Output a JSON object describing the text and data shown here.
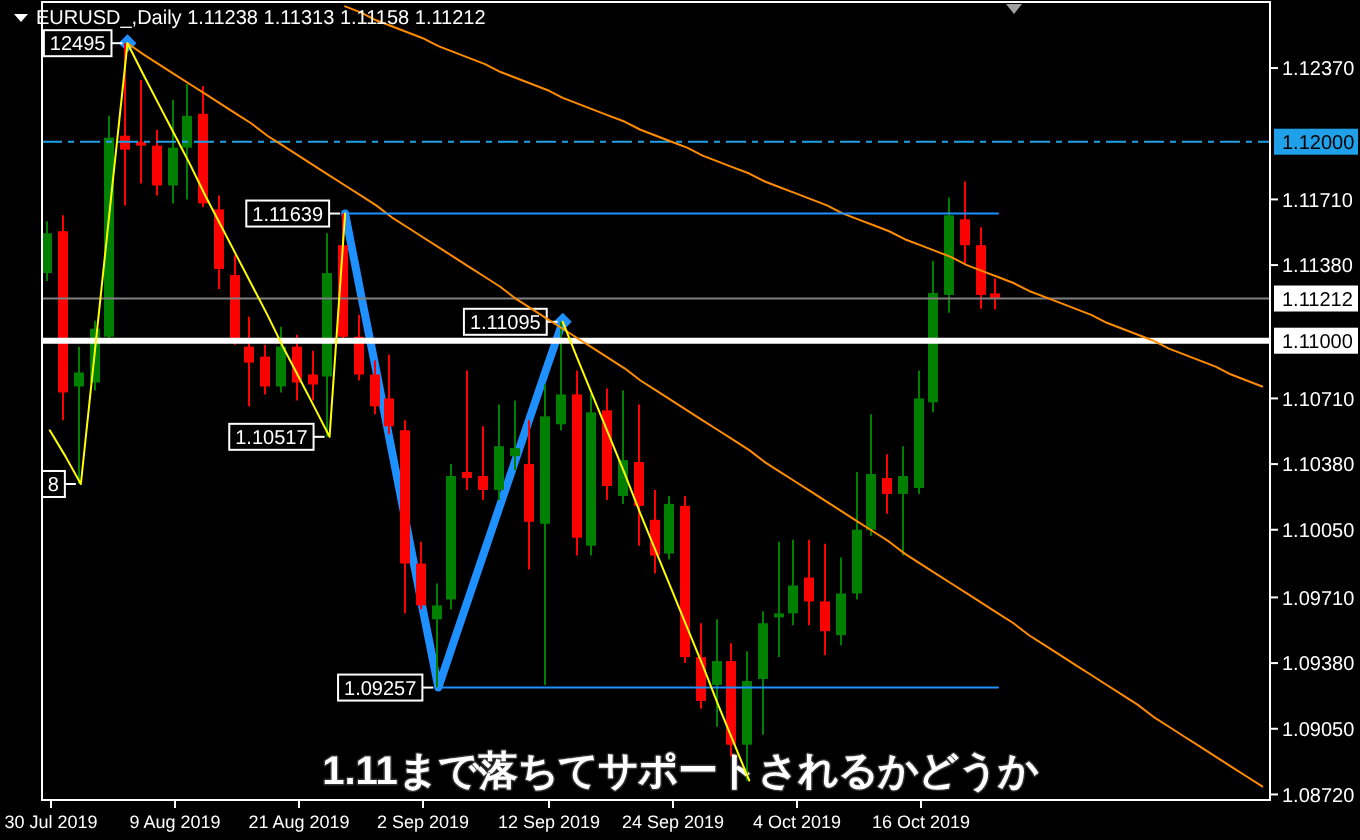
{
  "chart_data": {
    "type": "candlestick",
    "title": "EURUSD_,Daily 1.11238 1.11313 1.11158 1.11212",
    "categories": [
      "30 Jul 2019",
      null,
      null,
      null,
      null,
      null,
      null,
      null,
      "9 Aug 2019",
      null,
      null,
      null,
      null,
      null,
      null,
      null,
      "21 Aug 2019",
      null,
      null,
      null,
      null,
      null,
      null,
      null,
      "2 Sep 2019",
      null,
      null,
      null,
      null,
      null,
      null,
      null,
      "12 Sep 2019",
      null,
      null,
      null,
      null,
      null,
      null,
      null,
      "24 Sep 2019",
      null,
      null,
      null,
      null,
      null,
      null,
      null,
      "4 Oct 2019",
      null,
      null,
      null,
      null,
      null,
      null,
      null,
      "16 Oct 2019",
      null,
      null,
      null,
      null,
      null,
      null,
      null,
      null,
      null,
      null,
      null,
      null,
      null,
      null,
      null,
      null,
      null,
      null,
      null,
      null,
      null,
      null
    ],
    "ohlc": [
      [
        1.1134,
        1.116,
        1.113,
        1.1154
      ],
      [
        1.1155,
        1.1163,
        1.106,
        1.1074
      ],
      [
        1.1077,
        1.1097,
        1.1028,
        1.1084
      ],
      [
        1.1079,
        1.111,
        1.1075,
        1.1106
      ],
      [
        1.1102,
        1.1213,
        1.11,
        1.1202
      ],
      [
        1.1203,
        1.12495,
        1.1168,
        1.1196
      ],
      [
        1.12,
        1.1231,
        1.1179,
        1.1198
      ],
      [
        1.1198,
        1.1206,
        1.1173,
        1.1178
      ],
      [
        1.1178,
        1.1221,
        1.1169,
        1.1197
      ],
      [
        1.1197,
        1.1229,
        1.1171,
        1.1213
      ],
      [
        1.1214,
        1.1228,
        1.1167,
        1.1169
      ],
      [
        1.1166,
        1.1173,
        1.1126,
        1.1136
      ],
      [
        1.1133,
        1.1143,
        1.1098,
        1.1101
      ],
      [
        1.1097,
        1.1112,
        1.1067,
        1.1089
      ],
      [
        1.1092,
        1.1098,
        1.1073,
        1.1077
      ],
      [
        1.1077,
        1.1107,
        1.1074,
        1.1097
      ],
      [
        1.1097,
        1.1103,
        1.107,
        1.1079
      ],
      [
        1.1083,
        1.1095,
        1.107,
        1.1078
      ],
      [
        1.1082,
        1.1154,
        1.10517,
        1.1134
      ],
      [
        1.1148,
        1.11639,
        1.11,
        1.1102
      ],
      [
        1.1102,
        1.1113,
        1.108,
        1.1083
      ],
      [
        1.1083,
        1.109,
        1.1063,
        1.1067
      ],
      [
        1.1071,
        1.1093,
        1.1053,
        1.1057
      ],
      [
        1.1055,
        1.106,
        1.0963,
        1.0988
      ],
      [
        1.0988,
        1.0999,
        1.0965,
        1.0967
      ],
      [
        1.096,
        1.0978,
        1.09257,
        1.0967
      ],
      [
        1.097,
        1.1038,
        1.0965,
        1.1032
      ],
      [
        1.1034,
        1.1085,
        1.1025,
        1.1031
      ],
      [
        1.1032,
        1.1057,
        1.102,
        1.1025
      ],
      [
        1.1025,
        1.1068,
        1.102,
        1.1047
      ],
      [
        1.1042,
        1.107,
        1.1035,
        1.1046
      ],
      [
        1.1038,
        1.106,
        1.0985,
        1.1009
      ],
      [
        1.1008,
        1.1078,
        1.0927,
        1.1062
      ],
      [
        1.1058,
        1.11095,
        1.1055,
        1.1073
      ],
      [
        1.1073,
        1.1085,
        1.0992,
        1.1001
      ],
      [
        1.0997,
        1.1073,
        1.0992,
        1.1064
      ],
      [
        1.1065,
        1.1076,
        1.102,
        1.1027
      ],
      [
        1.1022,
        1.1075,
        1.1018,
        1.104
      ],
      [
        1.1039,
        1.1068,
        1.0997,
        1.1017
      ],
      [
        1.101,
        1.1025,
        1.0983,
        1.0992
      ],
      [
        1.0993,
        1.1022,
        1.099,
        1.1018
      ],
      [
        1.1017,
        1.1022,
        1.0938,
        1.0941
      ],
      [
        1.0941,
        1.0958,
        1.0915,
        1.0919
      ],
      [
        1.0927,
        1.096,
        1.0906,
        1.0939
      ],
      [
        1.0939,
        1.0948,
        1.0891,
        1.0897
      ],
      [
        1.0897,
        1.0944,
        1.0879,
        1.0929
      ],
      [
        1.093,
        1.0964,
        1.0902,
        1.0958
      ],
      [
        1.0961,
        1.0999,
        1.0941,
        1.0963
      ],
      [
        1.0963,
        1.1,
        1.0957,
        1.0977
      ],
      [
        1.0981,
        1.1,
        1.0957,
        1.0969
      ],
      [
        1.0969,
        1.0998,
        1.0942,
        1.0954
      ],
      [
        1.0952,
        1.0991,
        1.0947,
        1.0973
      ],
      [
        1.0973,
        1.1034,
        1.097,
        1.1005
      ],
      [
        1.1005,
        1.1063,
        1.1002,
        1.1033
      ],
      [
        1.1031,
        1.1043,
        1.1013,
        1.1023
      ],
      [
        1.1023,
        1.1047,
        1.0992,
        1.1032
      ],
      [
        1.1026,
        1.1085,
        1.1023,
        1.1071
      ],
      [
        1.1069,
        1.114,
        1.1064,
        1.1124
      ],
      [
        1.1123,
        1.1172,
        1.1114,
        1.1163
      ],
      [
        1.1161,
        1.118,
        1.1139,
        1.1148
      ],
      [
        1.1148,
        1.1157,
        1.1116,
        1.1123
      ],
      [
        1.11238,
        1.11313,
        1.11158,
        1.11212
      ],
      null,
      null,
      null,
      null,
      null,
      null,
      null,
      null,
      null,
      null,
      null,
      null,
      null,
      null,
      null,
      null,
      null
    ],
    "colors": [
      "#008000",
      "#ff0000",
      "#008000",
      "#008000",
      "#008000",
      "#ff0000",
      "#ff0000",
      "#ff0000",
      "#008000",
      "#008000",
      "#ff0000",
      "#ff0000",
      "#ff0000",
      "#ff0000",
      "#ff0000",
      "#008000",
      "#ff0000",
      "#ff0000",
      "#008000",
      "#ff0000",
      "#ff0000",
      "#ff0000",
      "#ff0000",
      "#ff0000",
      "#ff0000",
      "#008000",
      "#008000",
      "#ff0000",
      "#ff0000",
      "#008000",
      "#008000",
      "#ff0000",
      "#008000",
      "#008000",
      "#ff0000",
      "#008000",
      "#ff0000",
      "#008000",
      "#ff0000",
      "#ff0000",
      "#008000",
      "#ff0000",
      "#ff0000",
      "#008000",
      "#ff0000",
      "#008000",
      "#008000",
      "#008000",
      "#008000",
      "#ff0000",
      "#ff0000",
      "#008000",
      "#008000",
      "#008000",
      "#ff0000",
      "#008000",
      "#008000",
      "#008000",
      "#008000",
      "#ff0000",
      "#ff0000",
      "#ff0000",
      null,
      null,
      null,
      null,
      null,
      null,
      null,
      null,
      null,
      null,
      null,
      null,
      null,
      null,
      null,
      null,
      null
    ],
    "series": [
      {
        "type": "line",
        "color": "#ff8c00",
        "values": [
          null,
          null,
          null,
          null,
          null,
          null,
          null,
          null,
          null,
          null,
          null,
          null,
          null,
          null,
          null,
          null,
          null,
          null,
          null,
          1.1268,
          1.1265,
          1.1261,
          1.1258,
          1.1255,
          1.1252,
          1.1248,
          1.1245,
          1.1242,
          1.1239,
          1.1235,
          1.1232,
          1.1229,
          1.1226,
          1.1222,
          1.1219,
          1.1216,
          1.1213,
          1.121,
          1.1206,
          1.1203,
          1.12,
          1.1197,
          1.1193,
          1.119,
          1.1187,
          1.1184,
          1.118,
          1.1177,
          1.1174,
          1.1171,
          1.1168,
          1.1164,
          1.1161,
          1.1158,
          1.1155,
          1.1151,
          1.1148,
          1.1145,
          1.1142,
          1.1138,
          1.1135,
          1.1132,
          1.1129,
          1.1125,
          1.1122,
          1.1119,
          1.1116,
          1.1113,
          1.1109,
          1.1106,
          1.1103,
          1.11,
          1.1096,
          1.1093,
          1.109,
          1.1087,
          1.1083,
          1.108,
          1.1077
        ]
      },
      {
        "type": "line",
        "color": "#ff8c00",
        "values": [
          null,
          null,
          null,
          null,
          null,
          1.12495,
          1.1244,
          1.1239,
          1.1234,
          1.1229,
          1.1224,
          1.1219,
          1.1214,
          1.1209,
          1.1203,
          1.1198,
          1.1193,
          1.1188,
          1.1183,
          1.1178,
          1.1173,
          1.1168,
          1.1162,
          1.1157,
          1.1152,
          1.1147,
          1.1142,
          1.1137,
          1.1132,
          1.1127,
          1.1121,
          1.1116,
          1.1111,
          1.1106,
          1.1101,
          1.1096,
          1.1091,
          1.1086,
          1.108,
          1.1075,
          1.107,
          1.1065,
          1.106,
          1.1055,
          1.105,
          1.1045,
          1.1039,
          1.1034,
          1.1029,
          1.1024,
          1.1019,
          1.1014,
          1.1009,
          1.1004,
          1.0999,
          1.0993,
          1.0988,
          1.0983,
          1.0978,
          1.0973,
          1.0968,
          1.0963,
          1.0958,
          1.0952,
          1.0947,
          1.0942,
          1.0937,
          1.0932,
          1.0927,
          1.0922,
          1.0917,
          1.0911,
          1.0906,
          1.0901,
          1.0896,
          1.0891,
          1.0886,
          1.0881,
          1.0876
        ]
      },
      {
        "type": "line",
        "color": "#1e90ff",
        "values": [
          null,
          null,
          null,
          null,
          null,
          null,
          null,
          null,
          null,
          null,
          null,
          null,
          null,
          null,
          null,
          null,
          null,
          null,
          null,
          1.11639,
          1.11639,
          1.11639,
          1.11639,
          1.11639,
          1.11639,
          1.11639,
          1.11639,
          1.11639,
          1.11639,
          1.11639,
          1.11639,
          1.11639,
          1.11639,
          1.11639,
          1.11639,
          1.11639,
          1.11639,
          1.11639,
          1.11639,
          1.11639,
          1.11639,
          1.11639,
          1.11639,
          1.11639,
          1.11639,
          1.11639,
          1.11639,
          1.11639,
          1.11639,
          1.11639,
          1.11639,
          1.11639,
          1.11639,
          1.11639,
          1.11639,
          1.11639,
          1.11639,
          1.11639,
          1.11639,
          1.11639,
          1.11639,
          1.11639,
          null,
          null,
          null,
          null,
          null,
          null,
          null,
          null,
          null,
          null,
          null,
          null,
          null,
          null,
          null,
          null,
          null
        ]
      },
      {
        "type": "line",
        "color": "#1e90ff",
        "values": [
          null,
          null,
          null,
          null,
          null,
          null,
          null,
          null,
          null,
          null,
          null,
          null,
          null,
          null,
          null,
          null,
          null,
          null,
          null,
          null,
          null,
          null,
          null,
          null,
          null,
          1.09257,
          1.09257,
          1.09257,
          1.09257,
          1.09257,
          1.09257,
          1.09257,
          1.09257,
          1.09257,
          1.09257,
          1.09257,
          1.09257,
          1.09257,
          1.09257,
          1.09257,
          1.09257,
          1.09257,
          1.09257,
          1.09257,
          1.09257,
          1.09257,
          1.09257,
          1.09257,
          1.09257,
          1.09257,
          1.09257,
          1.09257,
          1.09257,
          1.09257,
          1.09257,
          1.09257,
          1.09257,
          1.09257,
          1.09257,
          1.09257,
          1.09257,
          1.09257,
          null,
          null,
          null,
          null,
          null,
          null,
          null,
          null,
          null,
          null,
          null,
          null,
          null,
          null,
          null,
          null,
          null
        ]
      },
      {
        "type": "line",
        "color": "#ffff00",
        "values": [
          1.1055,
          1.1042,
          1.1028,
          1.1102,
          1.1176,
          1.12495,
          1.1234,
          1.1219,
          1.1204,
          1.1189,
          1.1173,
          1.1158,
          1.1143,
          1.1128,
          1.1113,
          1.1097,
          1.1082,
          1.1067,
          1.10517,
          1.11639,
          null,
          null,
          null,
          null,
          null,
          null,
          null,
          null,
          null,
          null,
          null,
          null,
          null,
          1.11095,
          1.109,
          1.1071,
          1.1052,
          1.1033,
          1.1013,
          1.0994,
          1.0975,
          1.0956,
          1.0937,
          1.0917,
          1.0898,
          1.0879,
          null,
          null,
          null,
          null,
          null,
          null,
          null,
          null,
          null,
          null,
          null,
          null,
          null,
          null,
          null,
          null,
          null,
          null,
          null,
          null,
          null,
          null,
          null,
          null,
          null,
          null,
          null,
          null,
          null,
          null,
          null,
          null,
          null
        ]
      },
      {
        "type": "line",
        "color": "#1e90ff",
        "values": [
          null,
          null,
          null,
          null,
          null,
          null,
          null,
          null,
          null,
          null,
          null,
          null,
          null,
          null,
          null,
          null,
          null,
          null,
          null,
          1.11639,
          1.1124,
          1.1085,
          1.1045,
          1.1005,
          1.0965,
          1.09257,
          1.0949,
          1.0972,
          1.0995,
          1.1018,
          1.1041,
          1.1064,
          1.1087,
          1.11095,
          null,
          null,
          null,
          null,
          null,
          null,
          null,
          null,
          null,
          null,
          null,
          null,
          null,
          null,
          null,
          null,
          null,
          null,
          null,
          null,
          null,
          null,
          null,
          null,
          null,
          null,
          null,
          null,
          null,
          null,
          null,
          null,
          null,
          null,
          null,
          null,
          null,
          null,
          null,
          null,
          null,
          null,
          null,
          null,
          null
        ]
      },
      {
        "type": "scatter",
        "color": "#1e90ff",
        "marker": "diamond",
        "values": [
          null,
          null,
          null,
          null,
          null,
          1.12495,
          null,
          null,
          null,
          null,
          null,
          null,
          null,
          null,
          null,
          null,
          null,
          null,
          null,
          null,
          null,
          null,
          null,
          null,
          null,
          null,
          null,
          null,
          null,
          null,
          null,
          null,
          null,
          1.11095,
          null,
          null,
          null,
          null,
          null,
          null,
          null,
          null,
          null,
          null,
          null,
          null,
          null,
          null,
          null,
          null,
          null,
          null,
          null,
          null,
          null,
          null,
          null,
          null,
          null,
          null,
          null,
          null,
          null,
          null,
          null,
          null,
          null,
          null,
          null,
          null,
          null,
          null,
          null,
          null,
          null,
          null,
          null,
          null,
          null
        ]
      }
    ],
    "ylim": [
      1.08692,
      1.12702
    ],
    "yticks": [
      {
        "value": 1.1237,
        "label": "1.12370"
      },
      {
        "value": 1.1171,
        "label": "1.11710"
      },
      {
        "value": 1.1138,
        "label": "1.11380"
      },
      {
        "value": 1.1071,
        "label": "1.10710"
      },
      {
        "value": 1.1038,
        "label": "1.10380"
      },
      {
        "value": 1.1005,
        "label": "1.10050"
      },
      {
        "value": 1.0971,
        "label": "1.09710"
      },
      {
        "value": 1.0938,
        "label": "1.09380"
      },
      {
        "value": 1.0905,
        "label": "1.09050"
      },
      {
        "value": 1.0872,
        "label": "1.08720"
      }
    ],
    "ref_lines": [
      {
        "axis": "y",
        "value": 1.12,
        "label": "1.12000",
        "color": "#20a0e8",
        "line_style": "dashdot"
      },
      {
        "axis": "y",
        "value": 1.11212,
        "label": "1.11212",
        "color": "#808080"
      },
      {
        "axis": "y",
        "value": 1.11,
        "label": "1.11000",
        "color": "#ffffff"
      }
    ],
    "annotations": [
      {
        "text": "12495",
        "y": 1.12495
      },
      {
        "text": "1.11639",
        "y": 1.11639
      },
      {
        "text": "1.10517",
        "y": 1.10517
      },
      {
        "text": "1.09257",
        "y": 1.09257
      },
      {
        "text": "1.11095",
        "y": 1.11095
      },
      {
        "text": "8",
        "y": 1.1028
      },
      "1.11まで落ちてサポートされるかどうか"
    ]
  }
}
